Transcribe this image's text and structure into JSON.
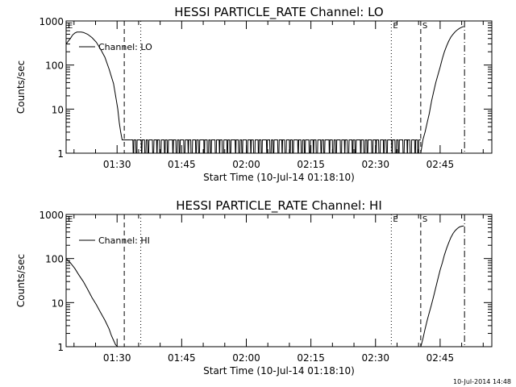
{
  "footer": {
    "timestamp": "10-Jul-2014 14:48"
  },
  "chart_data": [
    {
      "type": "line",
      "title": "HESSI PARTICLE_RATE Channel: LO",
      "xlabel": "Start Time (10-Jul-14 01:18:10)",
      "ylabel": "Counts/sec",
      "log_y": true,
      "ylim": [
        1,
        1000
      ],
      "xlim": [
        "01:18:10",
        "02:57:00"
      ],
      "x_ticks": [
        "01:30",
        "01:45",
        "02:00",
        "02:15",
        "02:30",
        "02:45"
      ],
      "y_ticks": [
        "1",
        "10",
        "100",
        "1000"
      ],
      "legend": {
        "position": "top-left",
        "entries": [
          "Channel: LO"
        ]
      },
      "markers": [
        {
          "label": "E",
          "time": "01:18:10",
          "style": "none"
        },
        {
          "label": "",
          "time": "01:31:40",
          "style": "dashed"
        },
        {
          "label": "",
          "time": "01:35:30",
          "style": "dotted"
        },
        {
          "label": "E",
          "time": "02:33:40",
          "style": "dotted"
        },
        {
          "label": "S",
          "time": "02:40:30",
          "style": "dashed"
        },
        {
          "label": "",
          "time": "02:50:40",
          "style": "dashdot"
        }
      ],
      "series": [
        {
          "name": "Channel: LO",
          "segments": [
            {
              "x": [
                "01:18:10",
                "01:18:40",
                "01:19:10",
                "01:19:40",
                "01:20:10",
                "01:20:40",
                "01:21:10",
                "01:21:40",
                "01:22:10",
                "01:23:10",
                "01:24:10",
                "01:25:10",
                "01:26:10",
                "01:27:10",
                "01:28:10",
                "01:28:40",
                "01:29:10",
                "01:29:40",
                "01:30:10",
                "01:30:30",
                "01:30:50",
                "01:31:10",
                "01:31:30",
                "01:32:00",
                "01:32:30",
                "01:33:00"
              ],
              "y": [
                300,
                350,
                400,
                480,
                530,
                560,
                560,
                560,
                550,
                500,
                420,
                330,
                230,
                150,
                80,
                55,
                38,
                20,
                10,
                5,
                3,
                2,
                2,
                2,
                2,
                2
              ]
            },
            {
              "x": [
                "01:33:00",
                "02:40:30"
              ],
              "y": [
                2,
                2
              ],
              "pattern": "alternating 1-2 counts/sec (noise)"
            },
            {
              "x": [
                "02:40:30",
                "02:41:00",
                "02:41:30",
                "02:42:00",
                "02:42:30",
                "02:43:00",
                "02:43:30",
                "02:44:00",
                "02:44:30",
                "02:45:00",
                "02:45:30",
                "02:46:00",
                "02:46:30",
                "02:47:00",
                "02:47:30",
                "02:48:00",
                "02:48:30",
                "02:49:00",
                "02:49:30",
                "02:50:00",
                "02:50:30"
              ],
              "y": [
                1,
                2,
                3,
                5,
                8,
                15,
                25,
                40,
                60,
                90,
                140,
                200,
                270,
                350,
                430,
                500,
                570,
                630,
                680,
                720,
                750
              ]
            }
          ]
        }
      ]
    },
    {
      "type": "line",
      "title": "HESSI PARTICLE_RATE Channel: HI",
      "xlabel": "Start Time (10-Jul-14 01:18:10)",
      "ylabel": "Counts/sec",
      "log_y": true,
      "ylim": [
        1,
        1000
      ],
      "xlim": [
        "01:18:10",
        "02:57:00"
      ],
      "x_ticks": [
        "01:30",
        "01:45",
        "02:00",
        "02:15",
        "02:30",
        "02:45"
      ],
      "y_ticks": [
        "1",
        "10",
        "100",
        "1000"
      ],
      "legend": {
        "position": "top-left",
        "entries": [
          "Channel: HI"
        ]
      },
      "markers": [
        {
          "label": "E",
          "time": "01:18:10",
          "style": "none"
        },
        {
          "label": "",
          "time": "01:31:40",
          "style": "dashed"
        },
        {
          "label": "",
          "time": "01:35:30",
          "style": "dotted"
        },
        {
          "label": "E",
          "time": "02:33:40",
          "style": "dotted"
        },
        {
          "label": "S",
          "time": "02:40:30",
          "style": "dashed"
        },
        {
          "label": "",
          "time": "02:50:40",
          "style": "dashdot"
        }
      ],
      "series": [
        {
          "name": "Channel: HI",
          "segments": [
            {
              "x": [
                "01:18:10",
                "01:19:10",
                "01:20:10",
                "01:21:10",
                "01:22:10",
                "01:23:10",
                "01:24:10",
                "01:25:10",
                "01:26:10",
                "01:27:10",
                "01:28:10",
                "01:28:40",
                "01:29:10",
                "01:29:40",
                "01:30:10"
              ],
              "y": [
                100,
                80,
                60,
                42,
                30,
                20,
                13,
                9,
                6,
                4,
                2.5,
                1.8,
                1.4,
                1.1,
                1
              ]
            },
            {
              "x": [
                "02:40:30",
                "02:41:00",
                "02:41:30",
                "02:42:00",
                "02:42:30",
                "02:43:00",
                "02:43:30",
                "02:44:00",
                "02:44:30",
                "02:45:00",
                "02:45:30",
                "02:46:00",
                "02:46:30",
                "02:47:00",
                "02:47:30",
                "02:48:00",
                "02:48:30",
                "02:49:00",
                "02:49:30",
                "02:50:00",
                "02:50:30"
              ],
              "y": [
                1,
                1.5,
                2.5,
                4,
                6,
                9,
                14,
                22,
                35,
                55,
                80,
                120,
                170,
                230,
                300,
                370,
                430,
                480,
                520,
                540,
                550
              ]
            }
          ]
        }
      ]
    }
  ]
}
